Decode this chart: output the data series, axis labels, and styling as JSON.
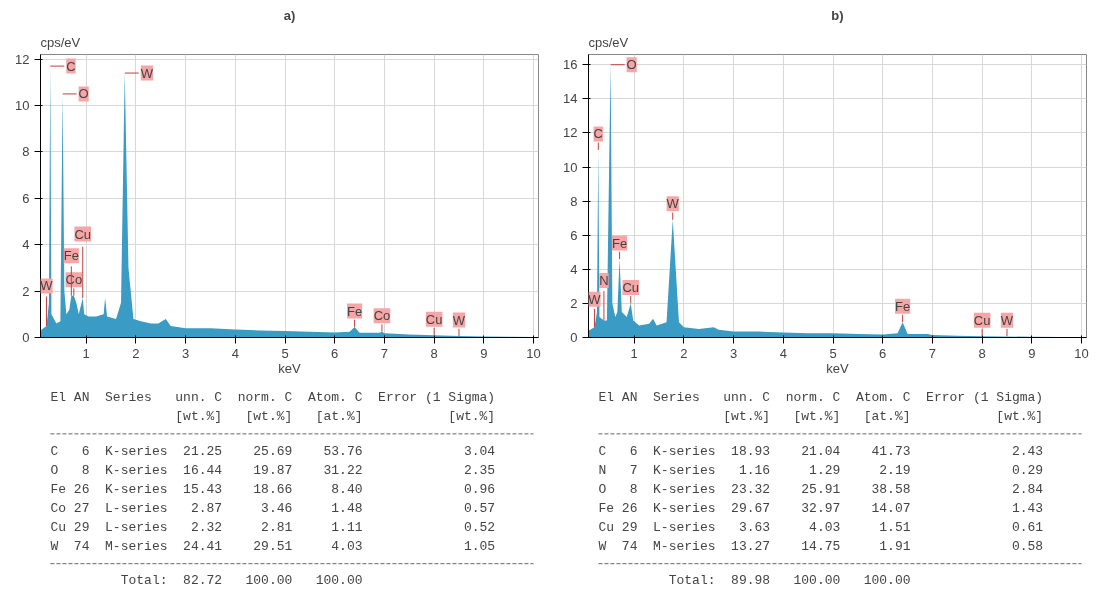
{
  "chart_data": [
    {
      "type": "area",
      "title": "a)",
      "xlabel": "keV",
      "ylabel": "cps/eV",
      "color": "#3a9cc4",
      "grid": true,
      "xlim": [
        0.08,
        10.1
      ],
      "ylim": [
        0,
        12.2
      ],
      "xticks": [
        1,
        2,
        3,
        4,
        5,
        6,
        7,
        8,
        9,
        10
      ],
      "yticks": [
        0,
        2,
        4,
        6,
        8,
        10,
        12
      ],
      "x": [
        0.08,
        0.2,
        0.25,
        0.277,
        0.3,
        0.4,
        0.48,
        0.525,
        0.56,
        0.6,
        0.66,
        0.7,
        0.75,
        0.8,
        0.85,
        0.93,
        0.96,
        1.05,
        1.2,
        1.35,
        1.38,
        1.42,
        1.6,
        1.7,
        1.775,
        1.85,
        1.95,
        2.1,
        2.3,
        2.45,
        2.6,
        2.7,
        3.0,
        3.5,
        4.0,
        4.5,
        5.0,
        5.5,
        6.0,
        6.3,
        6.4,
        6.5,
        6.9,
        6.95,
        7.0,
        7.5,
        8.0,
        8.5,
        9.0,
        9.5,
        10.0,
        10.1
      ],
      "values": [
        0.3,
        0.5,
        1.5,
        11.7,
        1.0,
        0.6,
        0.7,
        10.5,
        2.0,
        1.0,
        1.2,
        1.8,
        1.8,
        1.5,
        1.0,
        1.7,
        1.0,
        0.9,
        0.9,
        1.0,
        1.7,
        0.9,
        0.8,
        1.5,
        11.4,
        3.0,
        0.8,
        0.7,
        0.6,
        0.6,
        0.8,
        0.5,
        0.4,
        0.4,
        0.35,
        0.3,
        0.28,
        0.25,
        0.22,
        0.25,
        0.45,
        0.2,
        0.2,
        0.25,
        0.18,
        0.13,
        0.1,
        0.06,
        0.04,
        0.03,
        0.02,
        0.02
      ],
      "annotations": [
        {
          "text": "C",
          "x": 0.277,
          "y": 11.7
        },
        {
          "text": "O",
          "x": 0.525,
          "y": 10.5
        },
        {
          "text": "W",
          "x": 1.775,
          "y": 11.4
        },
        {
          "text": "Co",
          "x": 0.75,
          "y": 1.8
        },
        {
          "text": "Fe",
          "x": 0.7,
          "y": 1.8
        },
        {
          "text": "Cu",
          "x": 0.93,
          "y": 1.7
        },
        {
          "text": "W",
          "x": 0.2,
          "y": 0.5
        },
        {
          "text": "Fe",
          "x": 6.4,
          "y": 0.45
        },
        {
          "text": "Co",
          "x": 6.95,
          "y": 0.25
        },
        {
          "text": "Cu",
          "x": 8.0,
          "y": 0.1
        },
        {
          "text": "W",
          "x": 8.5,
          "y": 0.06
        },
        "El AN  Series   unn. C  norm. C  Atom. C  Error (1 Sigma)",
        "                [wt.%]   [wt.%]   [at.%]           [wt.%]",
        "C   6  K-series  21.25    25.69    53.76             3.04",
        "O   8  K-series  16.44    19.87    31.22             2.35",
        "Fe 26  K-series  15.43    18.66     8.40             0.96",
        "Co 27  L-series   2.87     3.46     1.48             0.57",
        "Cu 29  L-series   2.32     2.81     1.11             0.52",
        "W  74  M-series  24.41    29.51     4.03             1.05",
        "         Total:  82.72   100.00   100.00"
      ]
    },
    {
      "type": "area",
      "title": "b)",
      "xlabel": "keV",
      "ylabel": "cps/eV",
      "color": "#3a9cc4",
      "grid": true,
      "xlim": [
        0.08,
        10.1
      ],
      "ylim": [
        0,
        16.6
      ],
      "xticks": [
        1,
        2,
        3,
        4,
        5,
        6,
        7,
        8,
        9,
        10
      ],
      "yticks": [
        0,
        2,
        4,
        6,
        8,
        10,
        12,
        14,
        16
      ],
      "x": [
        0.08,
        0.2,
        0.25,
        0.277,
        0.3,
        0.39,
        0.45,
        0.525,
        0.56,
        0.62,
        0.66,
        0.705,
        0.75,
        0.85,
        0.93,
        0.98,
        1.1,
        1.3,
        1.38,
        1.45,
        1.65,
        1.775,
        1.9,
        2.0,
        2.3,
        2.6,
        2.7,
        3.0,
        3.5,
        4.0,
        4.5,
        5.0,
        5.5,
        6.0,
        6.3,
        6.4,
        6.5,
        6.9,
        7.0,
        7.5,
        8.0,
        9.0,
        10.1
      ],
      "values": [
        0.4,
        0.6,
        1.5,
        11.0,
        1.2,
        1.0,
        1.0,
        16.0,
        2.0,
        1.2,
        1.5,
        4.6,
        1.5,
        1.2,
        2.0,
        1.0,
        0.7,
        0.8,
        1.1,
        0.7,
        0.9,
        6.9,
        0.9,
        0.6,
        0.5,
        0.6,
        0.45,
        0.35,
        0.35,
        0.3,
        0.25,
        0.25,
        0.2,
        0.18,
        0.25,
        0.9,
        0.2,
        0.2,
        0.15,
        0.1,
        0.08,
        0.04,
        0.02
      ],
      "annotations": [
        {
          "text": "O",
          "x": 0.525,
          "y": 16.0
        },
        {
          "text": "C",
          "x": 0.277,
          "y": 11.0
        },
        {
          "text": "W",
          "x": 1.775,
          "y": 6.9
        },
        {
          "text": "Fe",
          "x": 0.705,
          "y": 4.6
        },
        {
          "text": "Cu",
          "x": 0.93,
          "y": 2.0
        },
        {
          "text": "W",
          "x": 0.2,
          "y": 0.6
        },
        {
          "text": "N",
          "x": 0.39,
          "y": 1.0
        },
        {
          "text": "Fe",
          "x": 6.4,
          "y": 0.9
        },
        {
          "text": "Cu",
          "x": 8.0,
          "y": 0.08
        },
        {
          "text": "W",
          "x": 8.5,
          "y": 0.07
        },
        "El AN  Series   unn. C  norm. C  Atom. C  Error (1 Sigma)",
        "                [wt.%]   [wt.%]   [at.%]           [wt.%]",
        "C   6  K-series  18.93    21.04    41.73             2.43",
        "N   7  K-series   1.16     1.29     2.19             0.29",
        "O   8  K-series  23.32    25.91    38.58             2.84",
        "Fe 26  K-series  29.67    32.97    14.07             1.43",
        "Cu 29  L-series   3.63     4.03     1.51             0.61",
        "W  74  M-series  13.27    14.75     1.91             0.58",
        "         Total:  89.98   100.00   100.00"
      ]
    }
  ]
}
